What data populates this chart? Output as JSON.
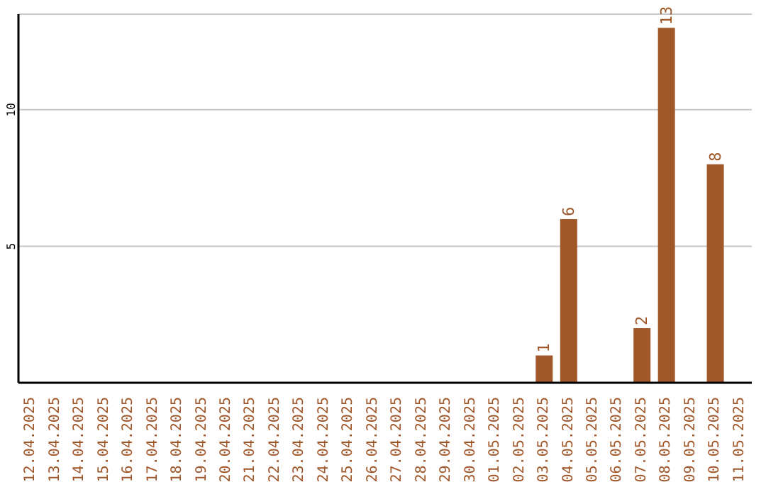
{
  "chart_data": {
    "type": "bar",
    "categories": [
      "12.04.2025",
      "13.04.2025",
      "14.04.2025",
      "15.04.2025",
      "16.04.2025",
      "17.04.2025",
      "18.04.2025",
      "19.04.2025",
      "20.04.2025",
      "21.04.2025",
      "22.04.2025",
      "23.04.2025",
      "24.04.2025",
      "25.04.2025",
      "26.04.2025",
      "27.04.2025",
      "28.04.2025",
      "29.04.2025",
      "30.04.2025",
      "01.05.2025",
      "02.05.2025",
      "03.05.2025",
      "04.05.2025",
      "05.05.2025",
      "06.05.2025",
      "07.05.2025",
      "08.05.2025",
      "09.05.2025",
      "10.05.2025",
      "11.05.2025"
    ],
    "values": [
      0,
      0,
      0,
      0,
      0,
      0,
      0,
      0,
      0,
      0,
      0,
      0,
      0,
      0,
      0,
      0,
      0,
      0,
      0,
      0,
      0,
      1,
      6,
      0,
      0,
      2,
      13,
      0,
      8,
      0
    ],
    "value_labels": [
      null,
      null,
      null,
      null,
      null,
      null,
      null,
      null,
      null,
      null,
      null,
      null,
      null,
      null,
      null,
      null,
      null,
      null,
      null,
      null,
      null,
      "1",
      "6",
      null,
      null,
      "2",
      "13",
      null,
      "8",
      null
    ],
    "color": "#a0572a",
    "ylim": [
      0,
      13.5
    ],
    "yticks": [
      5,
      10
    ],
    "grid": "y"
  }
}
